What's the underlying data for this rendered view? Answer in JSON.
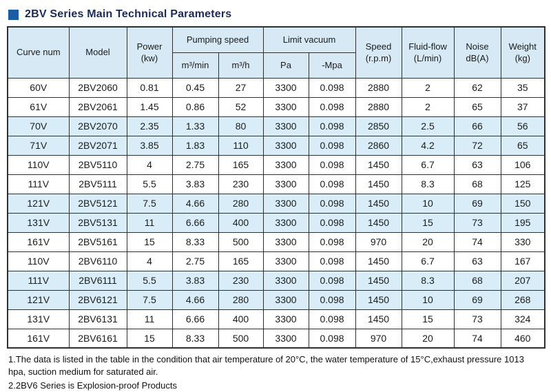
{
  "title": "2BV Series Main Technical Parameters",
  "colors": {
    "accent": "#1b5ca4",
    "title_text": "#1c2a5a",
    "header_bg": "#d6e9f5",
    "row_alt_bg": "#d9edf8",
    "border": "#2f2f2f"
  },
  "table": {
    "header": {
      "curve_num": "Curve num",
      "model": "Model",
      "power": "Power\n(kw)",
      "pumping_speed": "Pumping speed",
      "pumping_speed_sub": [
        "m³/min",
        "m³/h"
      ],
      "limit_vacuum": "Limit vacuum",
      "limit_vacuum_sub": [
        "Pa",
        "-Mpa"
      ],
      "speed": "Speed\n(r.p.m)",
      "fluid_flow": "Fluid-flow\n(L/min)",
      "noise": "Noise\ndB(A)",
      "weight": "Weight\n(kg)"
    },
    "rows": [
      [
        "60V",
        "2BV2060",
        "0.81",
        "0.45",
        "27",
        "3300",
        "0.098",
        "2880",
        "2",
        "62",
        "35"
      ],
      [
        "61V",
        "2BV2061",
        "1.45",
        "0.86",
        "52",
        "3300",
        "0.098",
        "2880",
        "2",
        "65",
        "37"
      ],
      [
        "70V",
        "2BV2070",
        "2.35",
        "1.33",
        "80",
        "3300",
        "0.098",
        "2850",
        "2.5",
        "66",
        "56"
      ],
      [
        "71V",
        "2BV2071",
        "3.85",
        "1.83",
        "110",
        "3300",
        "0.098",
        "2860",
        "4.2",
        "72",
        "65"
      ],
      [
        "110V",
        "2BV5110",
        "4",
        "2.75",
        "165",
        "3300",
        "0.098",
        "1450",
        "6.7",
        "63",
        "106"
      ],
      [
        "111V",
        "2BV5111",
        "5.5",
        "3.83",
        "230",
        "3300",
        "0.098",
        "1450",
        "8.3",
        "68",
        "125"
      ],
      [
        "121V",
        "2BV5121",
        "7.5",
        "4.66",
        "280",
        "3300",
        "0.098",
        "1450",
        "10",
        "69",
        "150"
      ],
      [
        "131V",
        "2BV5131",
        "11",
        "6.66",
        "400",
        "3300",
        "0.098",
        "1450",
        "15",
        "73",
        "195"
      ],
      [
        "161V",
        "2BV5161",
        "15",
        "8.33",
        "500",
        "3300",
        "0.098",
        "970",
        "20",
        "74",
        "330"
      ],
      [
        "110V",
        "2BV6110",
        "4",
        "2.75",
        "165",
        "3300",
        "0.098",
        "1450",
        "6.7",
        "63",
        "167"
      ],
      [
        "111V",
        "2BV6111",
        "5.5",
        "3.83",
        "230",
        "3300",
        "0.098",
        "1450",
        "8.3",
        "68",
        "207"
      ],
      [
        "121V",
        "2BV6121",
        "7.5",
        "4.66",
        "280",
        "3300",
        "0.098",
        "1450",
        "10",
        "69",
        "268"
      ],
      [
        "131V",
        "2BV6131",
        "11",
        "6.66",
        "400",
        "3300",
        "0.098",
        "1450",
        "15",
        "73",
        "324"
      ],
      [
        "161V",
        "2BV6161",
        "15",
        "8.33",
        "500",
        "3300",
        "0.098",
        "970",
        "20",
        "74",
        "460"
      ]
    ]
  },
  "notes": [
    "1.The data is listed in the table in the condition that air temperature of 20°C, the water temperature of 15°C,exhaust pressure 1013 hpa, suction medium for saturated air.",
    "2.2BV6 Series is Explosion-proof Products"
  ]
}
